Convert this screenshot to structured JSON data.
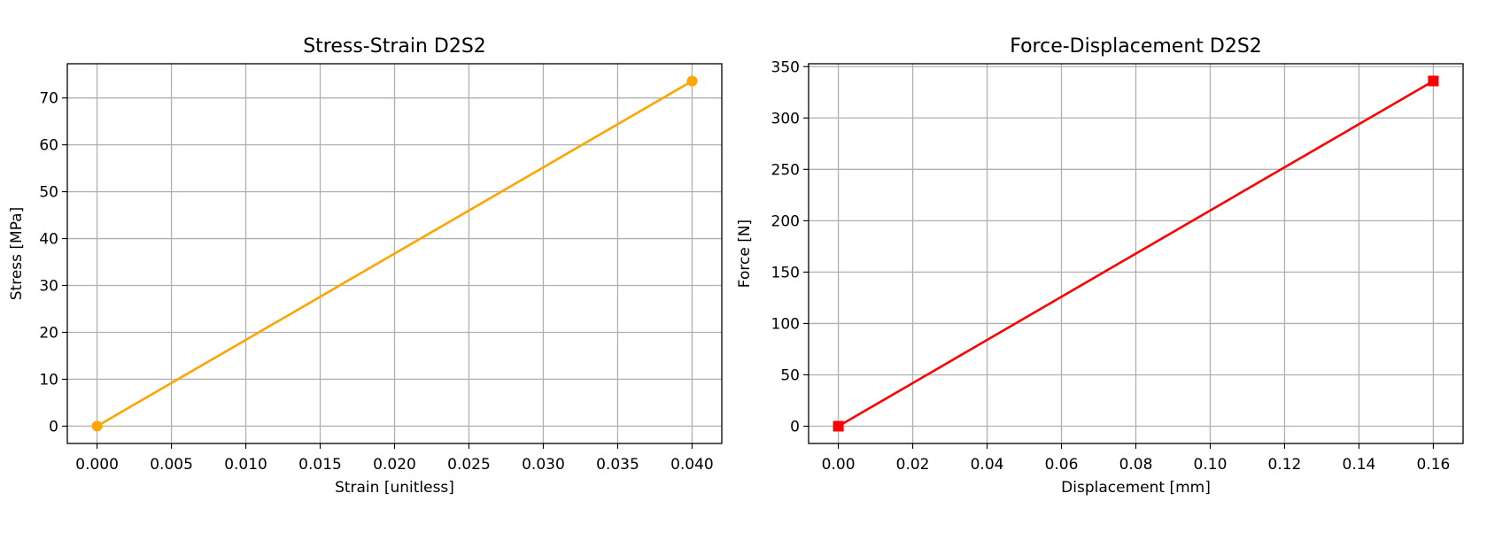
{
  "chart_data": [
    {
      "type": "line",
      "title": "Stress-Strain D2S2",
      "xlabel": "Strain [unitless]",
      "ylabel": "Stress [MPa]",
      "xlim": [
        -0.002,
        0.042
      ],
      "ylim": [
        -3.7,
        77.3
      ],
      "x_ticks": [
        0.0,
        0.005,
        0.01,
        0.015,
        0.02,
        0.025,
        0.03,
        0.035,
        0.04
      ],
      "x_tick_labels": [
        "0.000",
        "0.005",
        "0.010",
        "0.015",
        "0.020",
        "0.025",
        "0.030",
        "0.035",
        "0.040"
      ],
      "y_ticks": [
        0,
        10,
        20,
        30,
        40,
        50,
        60,
        70
      ],
      "y_tick_labels": [
        "0",
        "10",
        "20",
        "30",
        "40",
        "50",
        "60",
        "70"
      ],
      "grid": true,
      "series": [
        {
          "x": [
            0.0,
            0.04
          ],
          "y": [
            0,
            73.6
          ],
          "color": "#ffa500",
          "marker": "circle"
        }
      ]
    },
    {
      "type": "line",
      "title": "Force-Displacement D2S2",
      "xlabel": "Displacement [mm]",
      "ylabel": "Force [N]",
      "xlim": [
        -0.008,
        0.168
      ],
      "ylim": [
        -16.8,
        352.8
      ],
      "x_ticks": [
        0.0,
        0.02,
        0.04,
        0.06,
        0.08,
        0.1,
        0.12,
        0.14,
        0.16
      ],
      "x_tick_labels": [
        "0.00",
        "0.02",
        "0.04",
        "0.06",
        "0.08",
        "0.10",
        "0.12",
        "0.14",
        "0.16"
      ],
      "y_ticks": [
        0,
        50,
        100,
        150,
        200,
        250,
        300,
        350
      ],
      "y_tick_labels": [
        "0",
        "50",
        "100",
        "150",
        "200",
        "250",
        "300",
        "350"
      ],
      "grid": true,
      "series": [
        {
          "x": [
            0.0,
            0.16
          ],
          "y": [
            0,
            336
          ],
          "color": "#ff0000",
          "marker": "square"
        }
      ]
    }
  ]
}
